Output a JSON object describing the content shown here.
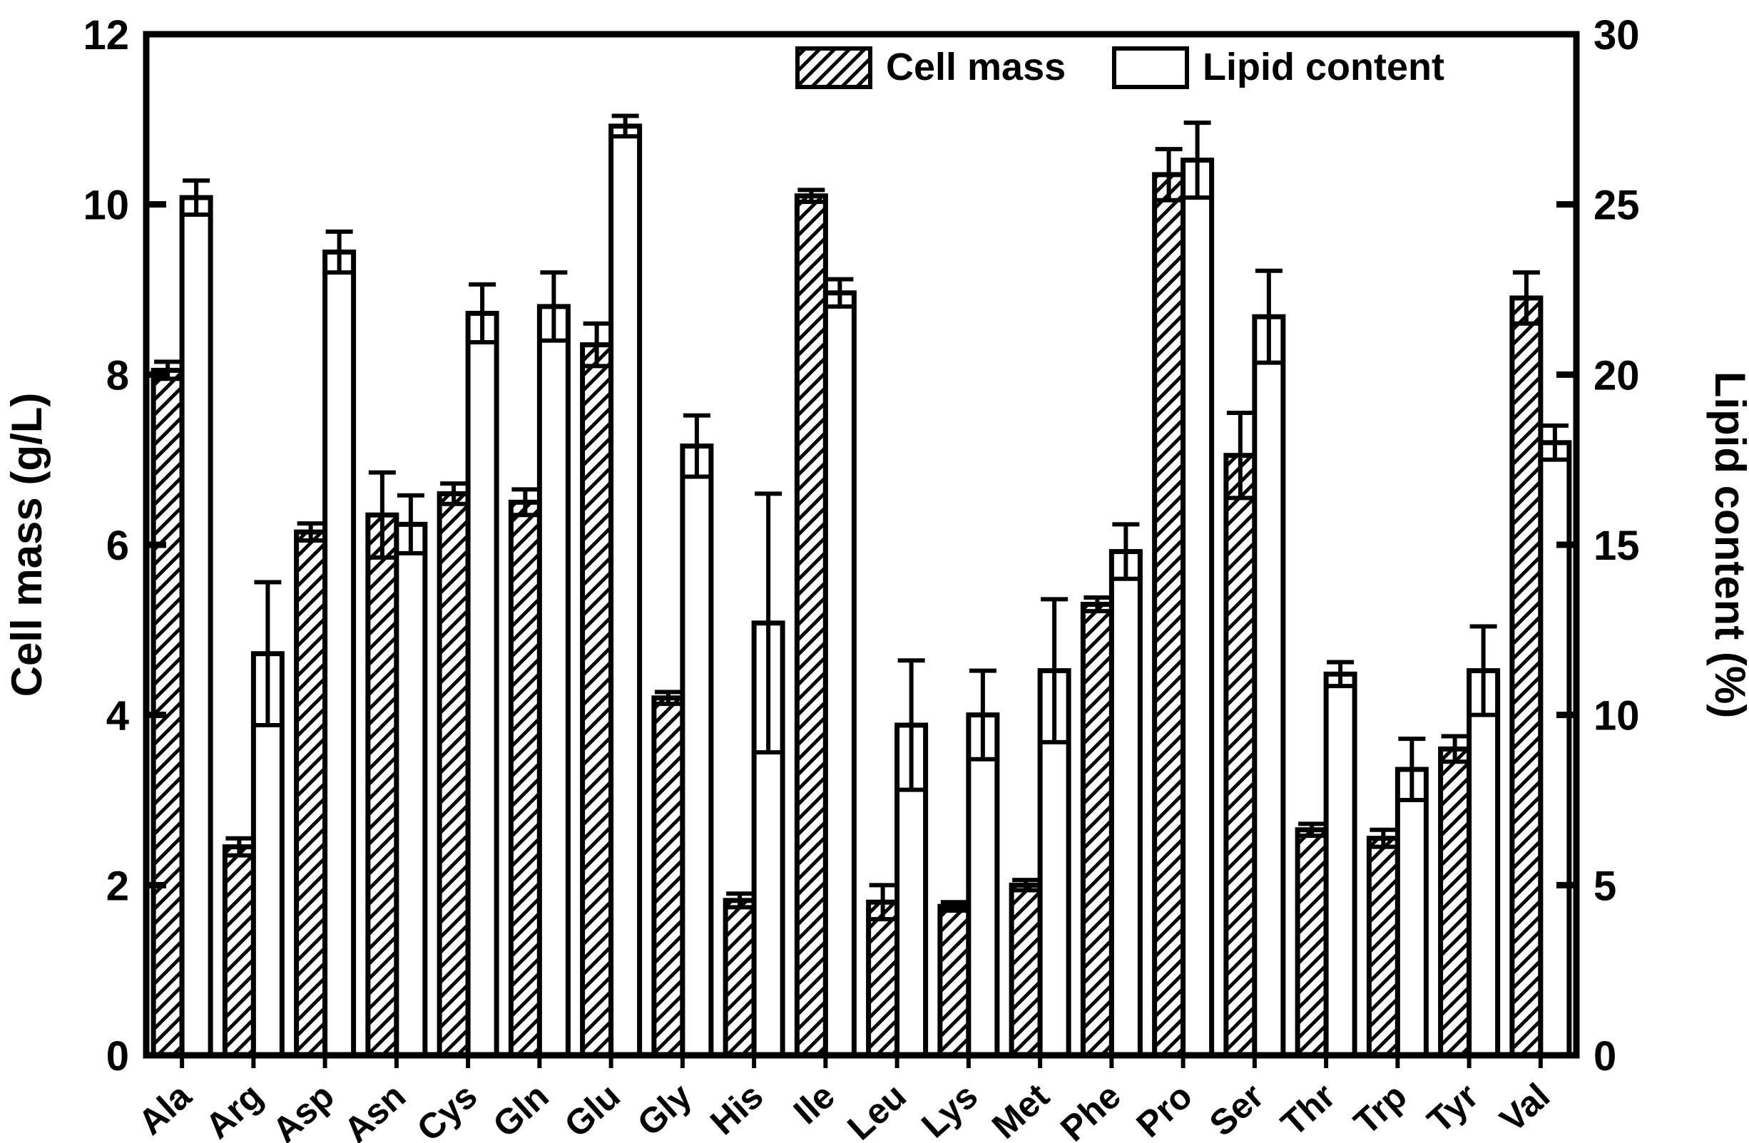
{
  "chart_data": {
    "type": "bar",
    "title": "",
    "grid": false,
    "background_color": "#ffffff",
    "stroke_color": "#000000",
    "bar_fill_color": "#ffffff",
    "categories": [
      "Ala",
      "Arg",
      "Asp",
      "Asn",
      "Cys",
      "Gln",
      "Glu",
      "Gly",
      "His",
      "Ile",
      "Leu",
      "Lys",
      "Met",
      "Phe",
      "Pro",
      "Ser",
      "Thr",
      "Trp",
      "Tyr",
      "Val"
    ],
    "series": [
      {
        "name": "Cell mass",
        "axis": "left",
        "style": "hatched",
        "values": [
          8.05,
          2.45,
          6.15,
          6.35,
          6.6,
          6.5,
          8.35,
          4.2,
          1.82,
          10.1,
          1.8,
          1.75,
          2.0,
          5.3,
          10.35,
          7.05,
          2.65,
          2.55,
          3.6,
          8.9
        ],
        "errors": [
          0.1,
          0.1,
          0.1,
          0.5,
          0.12,
          0.15,
          0.25,
          0.07,
          0.08,
          0.07,
          0.2,
          0.05,
          0.06,
          0.08,
          0.3,
          0.5,
          0.07,
          0.1,
          0.15,
          0.3
        ]
      },
      {
        "name": "Lipid content",
        "axis": "right",
        "style": "open",
        "values": [
          25.2,
          11.8,
          23.6,
          15.6,
          21.8,
          22.0,
          27.3,
          17.9,
          12.7,
          22.4,
          9.7,
          10.0,
          11.3,
          14.8,
          26.3,
          21.7,
          11.2,
          8.4,
          11.3,
          18.0
        ],
        "errors": [
          0.5,
          2.1,
          0.6,
          0.85,
          0.85,
          1.0,
          0.3,
          0.9,
          3.8,
          0.4,
          1.9,
          1.3,
          2.1,
          0.8,
          1.1,
          1.35,
          0.35,
          0.9,
          1.3,
          0.5
        ]
      }
    ],
    "left_axis": {
      "label": "Cell mass (g/L)",
      "min": 0,
      "max": 12,
      "ticks": [
        0,
        2,
        4,
        6,
        8,
        10,
        12
      ]
    },
    "right_axis": {
      "label": "Lipid content (%)",
      "min": 0,
      "max": 30,
      "ticks": [
        0,
        5,
        10,
        15,
        20,
        25,
        30
      ]
    },
    "legend": {
      "position": "top-right",
      "entries": [
        "Cell mass",
        "Lipid content"
      ]
    }
  }
}
